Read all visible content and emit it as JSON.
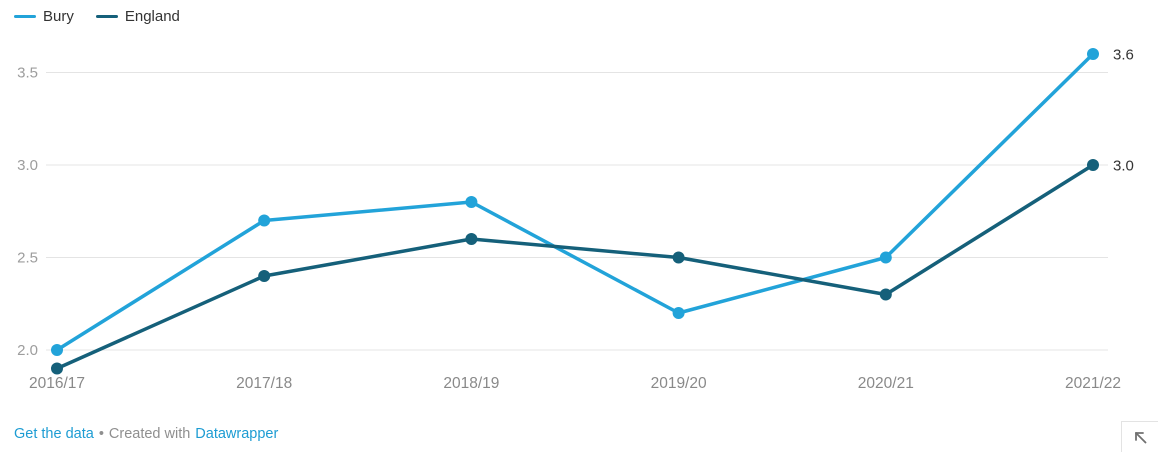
{
  "legend": {
    "items": [
      {
        "label": "Bury",
        "color": "#22a3d9"
      },
      {
        "label": "England",
        "color": "#15607a"
      }
    ]
  },
  "chart_data": {
    "type": "line",
    "categories": [
      "2016/17",
      "2017/18",
      "2018/19",
      "2019/20",
      "2020/21",
      "2021/22"
    ],
    "series": [
      {
        "name": "Bury",
        "color": "#22a3d9",
        "values": [
          2.0,
          2.7,
          2.8,
          2.2,
          2.5,
          3.6
        ],
        "end_label": "3.6"
      },
      {
        "name": "England",
        "color": "#15607a",
        "values": [
          1.9,
          2.4,
          2.6,
          2.5,
          2.3,
          3.0
        ],
        "end_label": "3.0"
      }
    ],
    "y_ticks": [
      2.0,
      2.5,
      3.0,
      3.5
    ],
    "y_tick_labels": [
      "2.0",
      "2.5",
      "3.0",
      "3.5"
    ],
    "ylim": [
      1.8,
      3.7
    ],
    "grid": true,
    "legend_position": "top-left",
    "title": "",
    "xlabel": "",
    "ylabel": "",
    "colors": {
      "gridline": "#e4e4e4",
      "y_tick_label": "#9d9d9d",
      "x_tick_label": "#898989",
      "end_label": "#333333"
    }
  },
  "footer": {
    "get_data_label": "Get the data",
    "separator": "•",
    "created_with_label": "Created with",
    "datawrapper_label": "Datawrapper"
  },
  "icons": {
    "resize_icon": "arrow-up-left",
    "resize_icon_color": "#707070"
  }
}
